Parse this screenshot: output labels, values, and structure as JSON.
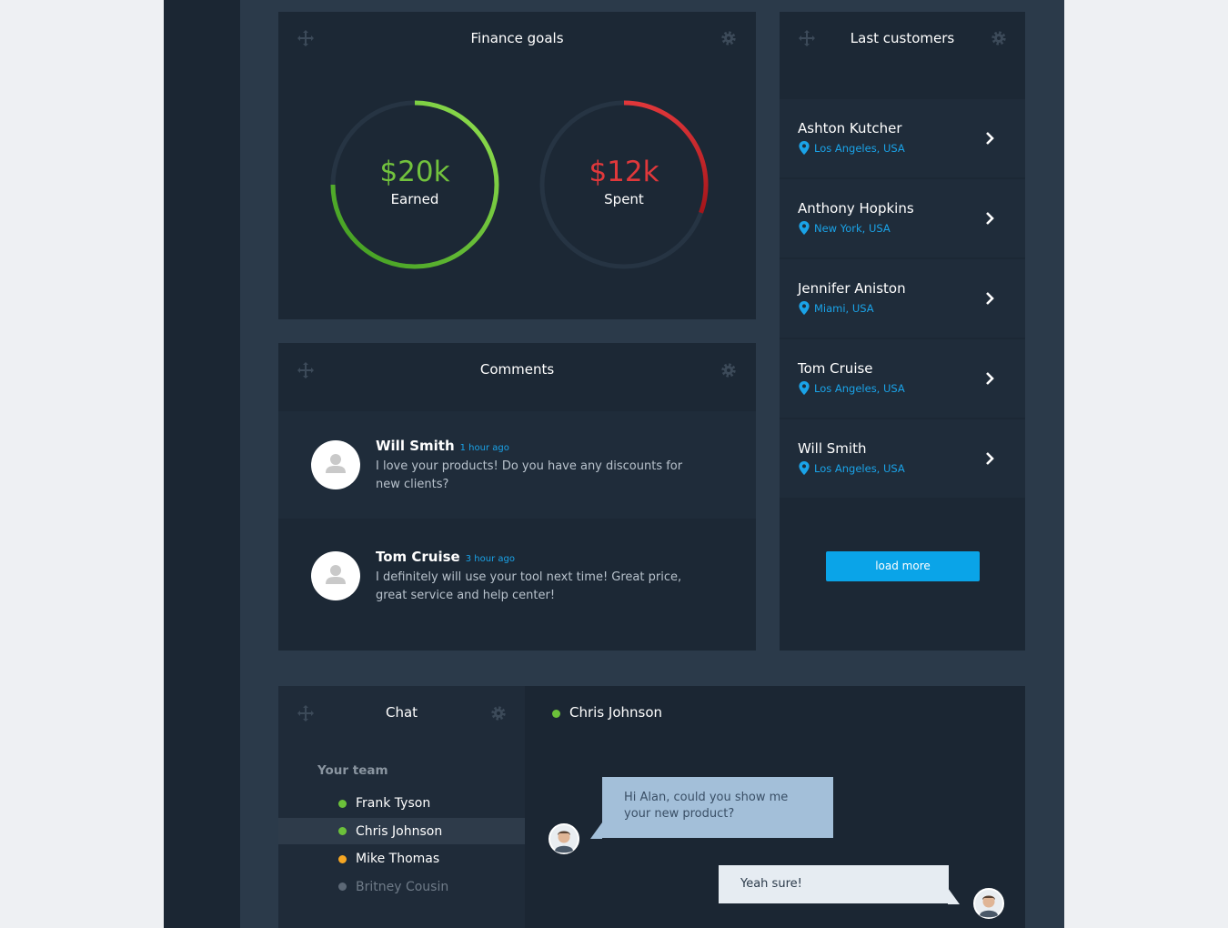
{
  "finance_goals": {
    "title": "Finance goals",
    "earned": {
      "amount": "$20k",
      "label": "Earned"
    },
    "spent": {
      "amount": "$12k",
      "label": "Spent"
    }
  },
  "last_customers": {
    "title": "Last customers",
    "customers": [
      {
        "name": "Ashton Kutcher",
        "location": "Los Angeles, USA"
      },
      {
        "name": "Anthony Hopkins",
        "location": "New York, USA"
      },
      {
        "name": "Jennifer Aniston",
        "location": "Miami, USA"
      },
      {
        "name": "Tom Cruise",
        "location": "Los Angeles, USA"
      },
      {
        "name": "Will Smith",
        "location": "Los Angeles, USA"
      }
    ],
    "button": "load more"
  },
  "comments": {
    "title": "Comments",
    "items": [
      {
        "author": "Will Smith",
        "time": "1 hour ago",
        "text": "I love your products! Do you have any discounts for new clients?"
      },
      {
        "author": "Tom Cruise",
        "time": "3 hour ago",
        "text": "I definitely will use your tool next time! Great price, great service and help center!"
      }
    ]
  },
  "chat": {
    "title": "Chat",
    "team_heading": "Your team",
    "team": [
      {
        "name": "Frank Tyson",
        "status": "online"
      },
      {
        "name": "Chris Johnson",
        "status": "online"
      },
      {
        "name": "Mike Thomas",
        "status": "away"
      },
      {
        "name": "Britney Cousin",
        "status": "offline"
      }
    ],
    "active_contact": "Chris Johnson",
    "messages": [
      {
        "text": "Hi Alan, could you show me your new product?"
      },
      {
        "text": "Yeah sure!"
      }
    ]
  }
}
